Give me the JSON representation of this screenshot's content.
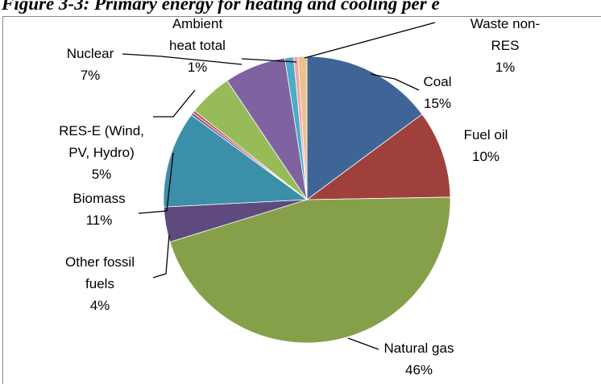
{
  "chart_data": {
    "type": "pie",
    "title": "Figure 3-3: Primary energy for heating and cooling per e",
    "categories": [
      "Coal",
      "Fuel oil",
      "Natural gas",
      "Other fossil fuels",
      "Biomass",
      null,
      null,
      "RES-E (Wind, PV, Hydro)",
      "Nuclear",
      "Ambient heat total",
      null,
      "Waste non-RES"
    ],
    "values": [
      15,
      10,
      46,
      4,
      11,
      0.3,
      0.3,
      5,
      7,
      1,
      0.5,
      1
    ],
    "value_labels": [
      "15%",
      "10%",
      "46%",
      "4%",
      "11%",
      null,
      null,
      "5%",
      "7%",
      "1%",
      null,
      "1%"
    ],
    "colors": [
      "#3f6597",
      "#a0403c",
      "#86a04a",
      "#5e4a7d",
      "#3c8fa8",
      "#7a5a9a",
      "#c0504d",
      "#98bb59",
      "#7f63a0",
      "#4bacc6",
      "#f3a4a4",
      "#f0c08c"
    ]
  }
}
